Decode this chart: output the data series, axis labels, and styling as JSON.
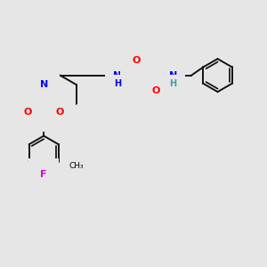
{
  "background_color": "#e6e6e6",
  "fig_size": [
    3.0,
    3.0
  ],
  "dpi": 100,
  "atom_colors": {
    "N": "#0000ff",
    "O": "#ff0000",
    "S": "#ccaa00",
    "F": "#dd00dd",
    "C": "#000000",
    "H": "#4a9a9a"
  },
  "bond_color": "#111111",
  "bond_width": 1.4
}
